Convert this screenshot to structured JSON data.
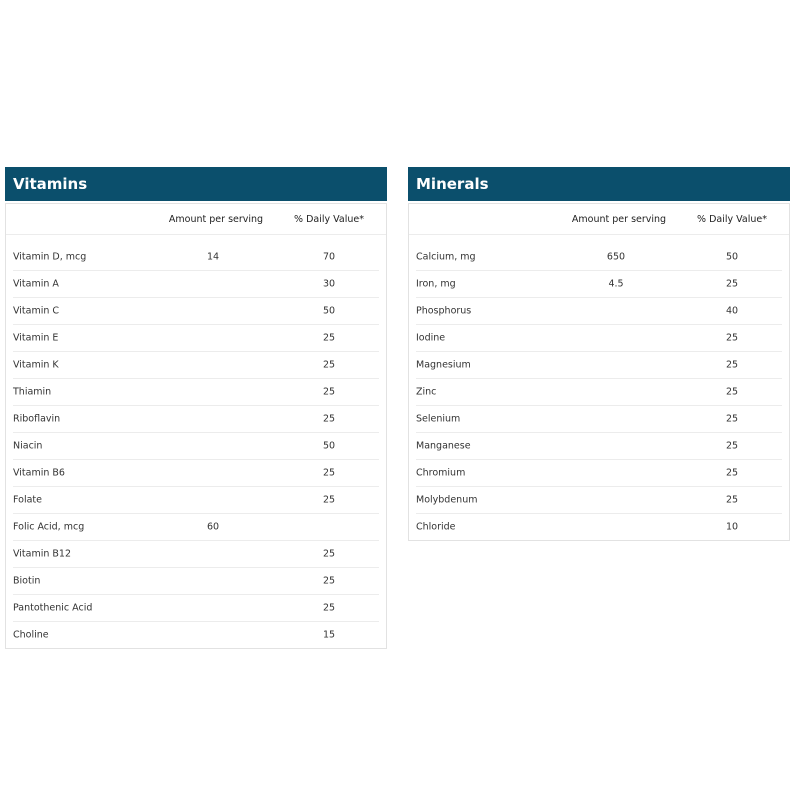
{
  "header_color": "#0b4f6c",
  "columns": {
    "amount": "Amount per serving",
    "daily": "% Daily Value*"
  },
  "vitamins": {
    "title": "Vitamins",
    "rows": [
      {
        "name": "Vitamin D, mcg",
        "amount": "14",
        "daily": "70"
      },
      {
        "name": "Vitamin A",
        "amount": "",
        "daily": "30"
      },
      {
        "name": "Vitamin C",
        "amount": "",
        "daily": "50"
      },
      {
        "name": "Vitamin E",
        "amount": "",
        "daily": "25"
      },
      {
        "name": "Vitamin K",
        "amount": "",
        "daily": "25"
      },
      {
        "name": "Thiamin",
        "amount": "",
        "daily": "25"
      },
      {
        "name": "Riboflavin",
        "amount": "",
        "daily": "25"
      },
      {
        "name": "Niacin",
        "amount": "",
        "daily": "50"
      },
      {
        "name": "Vitamin B6",
        "amount": "",
        "daily": "25"
      },
      {
        "name": "Folate",
        "amount": "",
        "daily": "25"
      },
      {
        "name": "Folic Acid, mcg",
        "amount": "60",
        "daily": ""
      },
      {
        "name": "Vitamin B12",
        "amount": "",
        "daily": "25"
      },
      {
        "name": "Biotin",
        "amount": "",
        "daily": "25"
      },
      {
        "name": "Pantothenic Acid",
        "amount": "",
        "daily": "25"
      },
      {
        "name": "Choline",
        "amount": "",
        "daily": "15"
      }
    ]
  },
  "minerals": {
    "title": "Minerals",
    "rows": [
      {
        "name": "Calcium, mg",
        "amount": "650",
        "daily": "50"
      },
      {
        "name": "Iron, mg",
        "amount": "4.5",
        "daily": "25"
      },
      {
        "name": "Phosphorus",
        "amount": "",
        "daily": "40"
      },
      {
        "name": "Iodine",
        "amount": "",
        "daily": "25"
      },
      {
        "name": "Magnesium",
        "amount": "",
        "daily": "25"
      },
      {
        "name": "Zinc",
        "amount": "",
        "daily": "25"
      },
      {
        "name": "Selenium",
        "amount": "",
        "daily": "25"
      },
      {
        "name": "Manganese",
        "amount": "",
        "daily": "25"
      },
      {
        "name": "Chromium",
        "amount": "",
        "daily": "25"
      },
      {
        "name": "Molybdenum",
        "amount": "",
        "daily": "25"
      },
      {
        "name": "Chloride",
        "amount": "",
        "daily": "10"
      }
    ]
  }
}
